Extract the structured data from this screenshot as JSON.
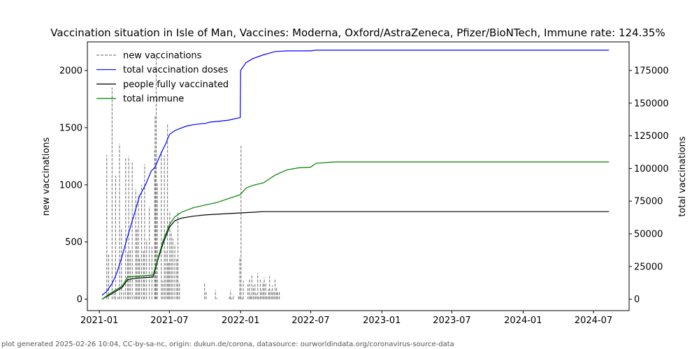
{
  "chart_data": {
    "type": "line",
    "title": "Vaccination situation in Isle of Man, Vaccines: Moderna, Oxford/AstraZeneca, Pfizer/BioNTech, Immune rate: 124.35%",
    "ylabel_left": "new vaccinations",
    "ylabel_right": "total vaccinations",
    "xlim": [
      "2020-12-01",
      "2024-10-01"
    ],
    "ylim_left": [
      -100,
      2250
    ],
    "ylim_right": [
      -8750,
      196875
    ],
    "x_ticks": [
      "2021-01",
      "2021-07",
      "2022-01",
      "2022-07",
      "2023-01",
      "2023-07",
      "2024-01",
      "2024-07"
    ],
    "y_ticks_left": [
      "0",
      "500",
      "1000",
      "1500",
      "2000"
    ],
    "y_ticks_right": [
      "0",
      "25000",
      "50000",
      "75000",
      "100000",
      "125000",
      "150000",
      "175000"
    ],
    "legend_position": "top-left",
    "grid": false,
    "series": [
      {
        "name": "new vaccinations",
        "axis": "left",
        "color": "#808080",
        "style": "dashed",
        "x": [
          "2021-01-08",
          "2021-01-20",
          "2021-01-25",
          "2021-02-03",
          "2021-02-08",
          "2021-02-12",
          "2021-02-18",
          "2021-02-22",
          "2021-02-27",
          "2021-03-05",
          "2021-03-10",
          "2021-03-15",
          "2021-03-18",
          "2021-03-22",
          "2021-03-27",
          "2021-04-01",
          "2021-04-05",
          "2021-04-08",
          "2021-04-12",
          "2021-04-15",
          "2021-04-20",
          "2021-04-25",
          "2021-04-28",
          "2021-05-03",
          "2021-05-10",
          "2021-05-17",
          "2021-05-24",
          "2021-05-25",
          "2021-05-27",
          "2021-05-28",
          "2021-05-31",
          "2021-06-03",
          "2021-06-10",
          "2021-06-14",
          "2021-06-18",
          "2021-06-22",
          "2021-06-26",
          "2021-06-29",
          "2021-07-02",
          "2021-07-06",
          "2021-07-10",
          "2021-07-15",
          "2021-07-20",
          "2021-07-23",
          "2021-07-27",
          "2021-09-30",
          "2021-10-04",
          "2021-10-28",
          "2021-11-01",
          "2021-12-03",
          "2021-12-06",
          "2021-12-09",
          "2021-12-13",
          "2021-12-27",
          "2021-12-30",
          "2022-01-02",
          "2022-01-05",
          "2022-01-08",
          "2022-01-20",
          "2022-01-24",
          "2022-01-27",
          "2022-01-30",
          "2022-02-03",
          "2022-02-07",
          "2022-02-10",
          "2022-02-14",
          "2022-02-17",
          "2022-02-21",
          "2022-02-24",
          "2022-02-28",
          "2022-03-03",
          "2022-03-07",
          "2022-03-10",
          "2022-03-14",
          "2022-03-17",
          "2022-03-21",
          "2022-03-24",
          "2022-03-28",
          "2022-03-31",
          "2022-04-04",
          "2022-04-07",
          "2022-04-11"
        ],
        "values": [
          0,
          1260,
          400,
          1850,
          50,
          1080,
          20,
          1360,
          620,
          80,
          1230,
          410,
          1250,
          430,
          1200,
          40,
          960,
          620,
          920,
          370,
          1000,
          420,
          1180,
          520,
          810,
          460,
          1300,
          1610,
          1150,
          2110,
          1020,
          0,
          1290,
          160,
          1260,
          420,
          1530,
          330,
          770,
          590,
          530,
          480,
          350,
          760,
          150,
          150,
          70,
          80,
          10,
          20,
          80,
          10,
          40,
          30,
          370,
          1340,
          10,
          160,
          130,
          180,
          40,
          220,
          120,
          130,
          50,
          230,
          20,
          170,
          80,
          150,
          190,
          140,
          30,
          90,
          200,
          80,
          120,
          60,
          180,
          110,
          60,
          70
        ]
      },
      {
        "name": "total vaccination doses",
        "axis": "right",
        "color": "#0000ff",
        "style": "solid",
        "x": [
          "2021-01-08",
          "2021-01-20",
          "2021-02-03",
          "2021-02-15",
          "2021-03-01",
          "2021-03-15",
          "2021-04-01",
          "2021-04-15",
          "2021-05-01",
          "2021-05-15",
          "2021-05-25",
          "2021-06-01",
          "2021-06-10",
          "2021-06-20",
          "2021-07-01",
          "2021-07-15",
          "2021-08-01",
          "2021-08-15",
          "2021-09-01",
          "2021-09-15",
          "2021-10-01",
          "2021-10-15",
          "2021-11-01",
          "2021-12-01",
          "2021-12-31",
          "2022-01-01",
          "2022-01-15",
          "2022-02-01",
          "2022-03-01",
          "2022-04-01",
          "2022-05-01",
          "2022-06-01",
          "2022-07-01",
          "2022-07-15",
          "2023-01-01",
          "2024-01-01",
          "2024-08-10"
        ],
        "values": [
          3000,
          6000,
          12000,
          20000,
          33000,
          48000,
          65000,
          79000,
          88000,
          98000,
          101000,
          106000,
          112000,
          118000,
          126000,
          129000,
          131000,
          132500,
          133500,
          134000,
          134500,
          135500,
          136000,
          137000,
          139000,
          175000,
          181000,
          184000,
          187000,
          189500,
          190000,
          190000,
          190000,
          190500,
          190500,
          190500,
          190500
        ]
      },
      {
        "name": "people fully vaccinated",
        "axis": "right",
        "color": "#000000",
        "style": "solid",
        "x": [
          "2021-01-08",
          "2021-02-01",
          "2021-03-01",
          "2021-03-15",
          "2021-04-05",
          "2021-05-01",
          "2021-05-20",
          "2021-06-01",
          "2021-06-15",
          "2021-07-01",
          "2021-07-15",
          "2021-08-01",
          "2021-09-01",
          "2021-10-01",
          "2021-11-01",
          "2021-12-01",
          "2022-01-01",
          "2022-02-01",
          "2022-03-01",
          "2022-04-01",
          "2022-07-01",
          "2023-01-01",
          "2024-01-01",
          "2024-08-10"
        ],
        "values": [
          0,
          4000,
          9000,
          15000,
          16000,
          16500,
          17000,
          30000,
          43000,
          55000,
          60000,
          62000,
          63500,
          64500,
          65000,
          65500,
          66000,
          66500,
          67000,
          67000,
          67000,
          67000,
          67000,
          67000
        ]
      },
      {
        "name": "total immune",
        "axis": "right",
        "color": "#008000",
        "style": "solid",
        "x": [
          "2021-01-08",
          "2021-02-01",
          "2021-03-01",
          "2021-03-15",
          "2021-04-05",
          "2021-05-01",
          "2021-05-20",
          "2021-06-01",
          "2021-06-15",
          "2021-07-01",
          "2021-07-15",
          "2021-08-01",
          "2021-09-01",
          "2021-10-01",
          "2021-11-01",
          "2021-12-01",
          "2021-12-31",
          "2022-01-15",
          "2022-02-01",
          "2022-03-01",
          "2022-04-01",
          "2022-05-01",
          "2022-06-01",
          "2022-07-01",
          "2022-07-15",
          "2022-09-01",
          "2023-01-01",
          "2024-01-01",
          "2024-08-10"
        ],
        "values": [
          0,
          5000,
          10000,
          17000,
          17500,
          18000,
          18500,
          31000,
          45000,
          57000,
          63000,
          66500,
          70000,
          72000,
          74000,
          77000,
          80000,
          85000,
          87000,
          89000,
          95000,
          99000,
          100500,
          101000,
          104000,
          105000,
          105000,
          105000,
          105000
        ]
      }
    ]
  },
  "footer": "plot generated 2025-02-26 10:04, CC-by-sa-nc, origin: dukun.de/corona, datasource: ourworldindata.org/coronavirus-source-data"
}
